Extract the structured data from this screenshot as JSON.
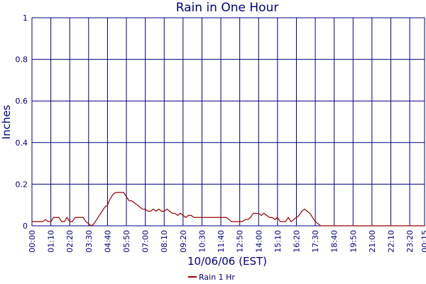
{
  "chart_data": {
    "type": "line",
    "title": "Rain in One Hour",
    "x_label": "10/06/06 (EST)",
    "y_label": "Inches",
    "x": [
      0,
      10,
      20,
      30,
      40,
      50,
      60,
      70,
      80,
      90,
      100,
      110,
      120,
      130,
      140,
      150,
      160,
      170,
      180,
      190,
      200,
      210,
      220,
      230,
      240,
      250,
      260,
      270,
      280,
      290,
      300,
      310,
      320,
      330,
      340,
      350,
      360,
      370,
      380,
      390,
      400,
      410,
      420,
      430,
      440,
      450,
      460,
      470,
      480,
      490,
      500,
      510,
      520,
      530,
      540,
      550,
      560,
      570,
      580,
      590,
      600,
      610,
      620,
      630,
      640,
      650,
      660,
      670,
      680,
      690,
      700,
      710,
      720,
      730,
      740,
      750,
      760,
      770,
      780,
      790,
      800,
      810,
      820,
      830,
      840,
      850,
      860,
      870,
      880,
      890,
      900,
      910,
      920,
      930,
      940,
      950,
      960,
      970,
      980,
      990,
      1000,
      1010,
      1020,
      1030,
      1040,
      1050,
      1060,
      1070,
      1080,
      1455
    ],
    "series": [
      {
        "name": "Rain 1 Hr",
        "color": "#990000",
        "values": [
          0.02,
          0.02,
          0.02,
          0.02,
          0.02,
          0.03,
          0.02,
          0.02,
          0.04,
          0.04,
          0.04,
          0.02,
          0.02,
          0.04,
          0.02,
          0.02,
          0.04,
          0.04,
          0.04,
          0.04,
          0.02,
          0.01,
          0,
          0.01,
          0.03,
          0.05,
          0.07,
          0.09,
          0.1,
          0.13,
          0.15,
          0.16,
          0.16,
          0.16,
          0.16,
          0.14,
          0.12,
          0.12,
          0.11,
          0.1,
          0.09,
          0.08,
          0.08,
          0.07,
          0.07,
          0.08,
          0.07,
          0.08,
          0.07,
          0.07,
          0.08,
          0.07,
          0.06,
          0.06,
          0.05,
          0.06,
          0.05,
          0.04,
          0.05,
          0.05,
          0.04,
          0.04,
          0.04,
          0.04,
          0.04,
          0.04,
          0.04,
          0.04,
          0.04,
          0.04,
          0.04,
          0.04,
          0.04,
          0.03,
          0.02,
          0.02,
          0.02,
          0.02,
          0.02,
          0.03,
          0.03,
          0.04,
          0.06,
          0.06,
          0.06,
          0.05,
          0.06,
          0.05,
          0.04,
          0.04,
          0.03,
          0.04,
          0.02,
          0.02,
          0.02,
          0.04,
          0.02,
          0.03,
          0.04,
          0.05,
          0.07,
          0.08,
          0.07,
          0.06,
          0.04,
          0.02,
          0.01,
          0,
          0,
          0
        ]
      }
    ],
    "xlim": [
      0,
      1455
    ],
    "xticks": [
      {
        "value": 0,
        "label": "00:00"
      },
      {
        "value": 70,
        "label": "01:10"
      },
      {
        "value": 140,
        "label": "02:20"
      },
      {
        "value": 210,
        "label": "03:30"
      },
      {
        "value": 280,
        "label": "04:40"
      },
      {
        "value": 350,
        "label": "05:50"
      },
      {
        "value": 420,
        "label": "07:00"
      },
      {
        "value": 490,
        "label": "08:10"
      },
      {
        "value": 560,
        "label": "09:20"
      },
      {
        "value": 630,
        "label": "10:30"
      },
      {
        "value": 700,
        "label": "11:40"
      },
      {
        "value": 770,
        "label": "12:50"
      },
      {
        "value": 840,
        "label": "14:00"
      },
      {
        "value": 910,
        "label": "15:10"
      },
      {
        "value": 980,
        "label": "16:20"
      },
      {
        "value": 1050,
        "label": "17:30"
      },
      {
        "value": 1120,
        "label": "18:40"
      },
      {
        "value": 1190,
        "label": "19:50"
      },
      {
        "value": 1260,
        "label": "21:00"
      },
      {
        "value": 1330,
        "label": "22:10"
      },
      {
        "value": 1400,
        "label": "23:20"
      },
      {
        "value": 1455,
        "label": "00:15"
      }
    ],
    "ylim": [
      0,
      1
    ],
    "yticks": [
      0,
      0.2,
      0.4,
      0.6,
      0.8,
      1
    ],
    "grid": true,
    "grid_color": "#000080",
    "legend": "bottom"
  }
}
